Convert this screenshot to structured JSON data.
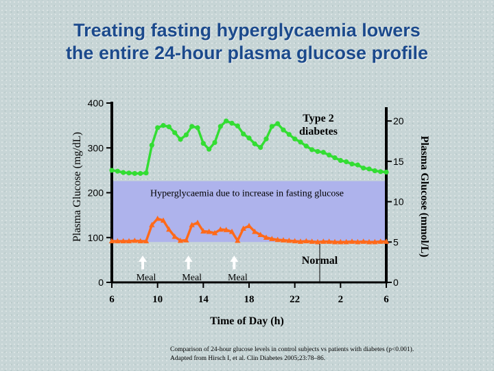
{
  "title": {
    "line1": "Treating fasting hyperglycaemia lowers",
    "line2": "the entire 24-hour plasma glucose profile"
  },
  "colors": {
    "diabetes": "#33dd33",
    "normal": "#ff6a1a",
    "band": "#aeb3ec",
    "axis": "#000000",
    "title": "#1c4a8c"
  },
  "chart_data": {
    "type": "line",
    "xlabel": "Time of Day (h)",
    "ylabel": "Plasma Glucose (mg/dL)",
    "y2label": "Plasma Glucose (mmol/L)",
    "x_tick_labels": [
      "6",
      "10",
      "14",
      "18",
      "22",
      "2",
      "6"
    ],
    "x_ticks": [
      0,
      4,
      8,
      12,
      16,
      20,
      24
    ],
    "xlim": [
      0,
      24
    ],
    "ylim": [
      0,
      400
    ],
    "y_ticks": [
      0,
      100,
      200,
      300,
      400
    ],
    "y2_ticks": [
      {
        "label": "0",
        "value": 0
      },
      {
        "label": "5",
        "value": 90
      },
      {
        "label": "10",
        "value": 180
      },
      {
        "label": "15",
        "value": 270
      },
      {
        "label": "20",
        "value": 360
      }
    ],
    "band": {
      "label": "Hyperglycaemia due to increase in fasting glucose",
      "ymin": 90,
      "ymax": 226
    },
    "meals": [
      {
        "label": "Meal",
        "x": 3
      },
      {
        "label": "Meal",
        "x": 7
      },
      {
        "label": "Meal",
        "x": 11
      }
    ],
    "series": [
      {
        "name": "Type 2 diabetes",
        "label_line1": "Type 2",
        "label_line2": "diabetes",
        "x": [
          0,
          0.5,
          1,
          1.5,
          2,
          2.5,
          3,
          3.5,
          4,
          4.5,
          5,
          5.5,
          6,
          6.5,
          7,
          7.5,
          8,
          8.5,
          9,
          9.5,
          10,
          10.5,
          11,
          11.5,
          12,
          12.5,
          13,
          13.5,
          14,
          14.5,
          15,
          15.5,
          16,
          16.5,
          17,
          17.5,
          18,
          18.5,
          19,
          19.5,
          20,
          20.5,
          21,
          21.5,
          22,
          22.5,
          23,
          23.5,
          24
        ],
        "values": [
          250,
          248,
          245,
          244,
          243,
          243,
          244,
          306,
          345,
          350,
          347,
          334,
          319,
          329,
          348,
          345,
          310,
          297,
          312,
          348,
          360,
          355,
          349,
          331,
          322,
          309,
          301,
          320,
          348,
          354,
          340,
          330,
          320,
          313,
          304,
          296,
          292,
          290,
          284,
          278,
          272,
          269,
          264,
          262,
          255,
          253,
          249,
          247,
          246
        ]
      },
      {
        "name": "Normal",
        "x": [
          0,
          0.5,
          1,
          1.5,
          2,
          2.5,
          3,
          3.5,
          4,
          4.5,
          5,
          5.5,
          6,
          6.5,
          7,
          7.5,
          8,
          8.5,
          9,
          9.5,
          10,
          10.5,
          11,
          11.5,
          12,
          12.5,
          13,
          13.5,
          14,
          14.5,
          15,
          15.5,
          16,
          16.5,
          17,
          17.5,
          18,
          18.5,
          19,
          19.5,
          20,
          20.5,
          21,
          21.5,
          22,
          22.5,
          23,
          23.5,
          24
        ],
        "values": [
          92,
          92,
          92,
          92,
          93,
          92,
          92,
          128,
          142,
          138,
          118,
          102,
          93,
          94,
          128,
          133,
          114,
          113,
          110,
          118,
          117,
          113,
          93,
          120,
          126,
          113,
          106,
          100,
          97,
          95,
          94,
          93,
          92,
          91,
          92,
          91,
          90,
          91,
          91,
          90,
          90,
          90,
          91,
          90,
          91,
          90,
          90,
          91,
          91
        ]
      }
    ]
  },
  "annotations": {
    "normal_label": "Normal"
  },
  "footnote": {
    "line1": "Comparison of 24-hour glucose levels in control subjects vs patients with diabetes (p<0.001).",
    "line2": "Adapted from Hirsch I, et al. Clin Diabetes 2005;23:78–86."
  }
}
